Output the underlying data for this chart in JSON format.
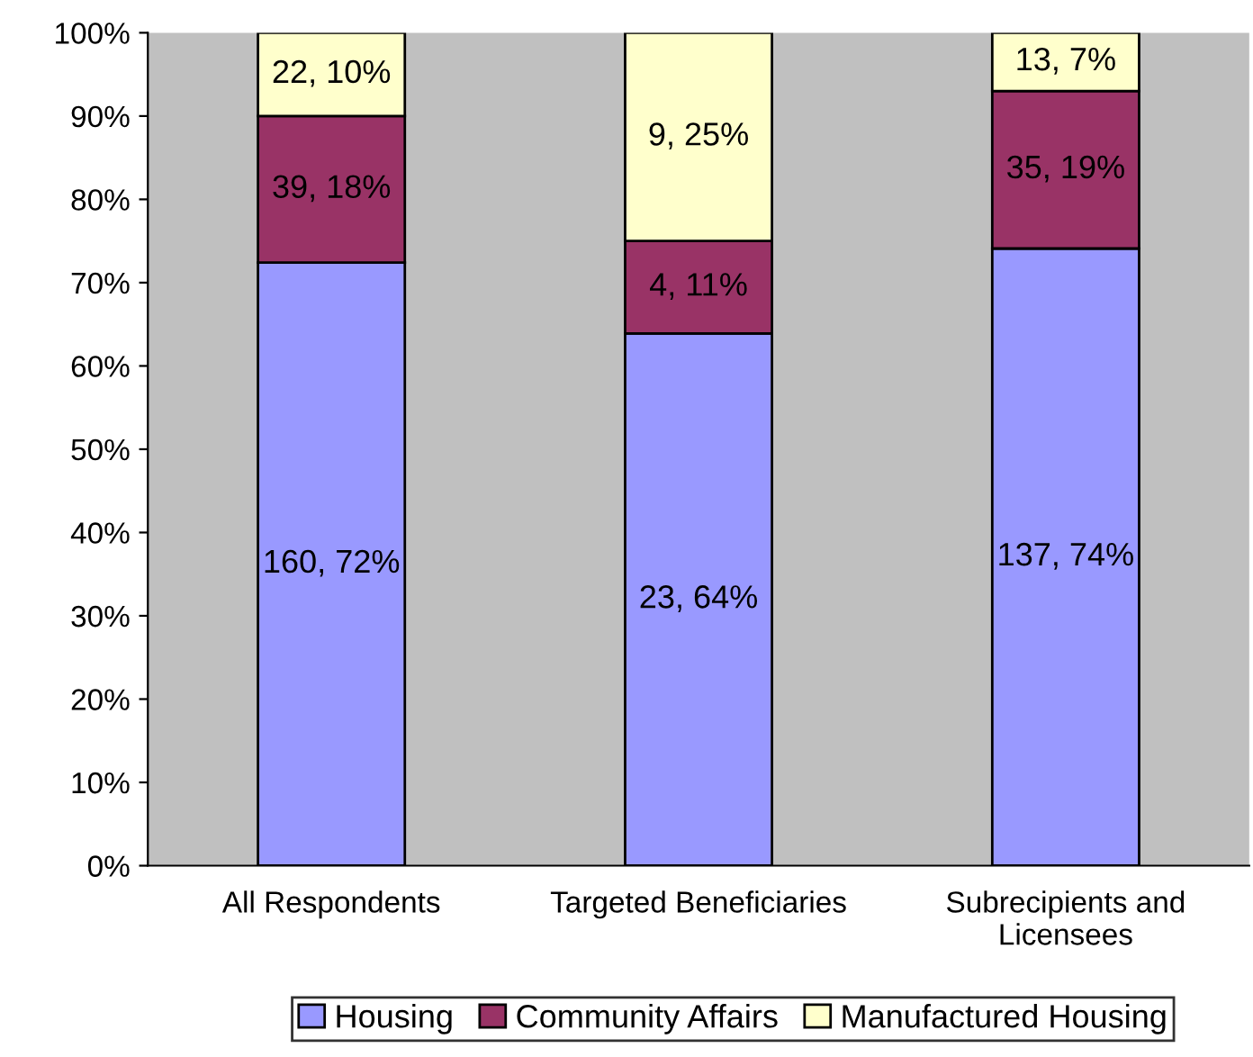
{
  "chart_data": {
    "type": "bar",
    "stacked": true,
    "categories": [
      "All Respondents",
      "Targeted Beneficiaries",
      "Subrecipients and\nLicensees"
    ],
    "series": [
      {
        "name": "Housing",
        "color": "#9999ff",
        "values": [
          72.4,
          63.9,
          74.1
        ],
        "value_labels": [
          "160, 72%",
          "23, 64%",
          "137, 74%"
        ]
      },
      {
        "name": "Community Affairs",
        "color": "#993366",
        "values": [
          17.6,
          11.1,
          18.9
        ],
        "value_labels": [
          "39, 18%",
          "4, 11%",
          "35, 19%"
        ]
      },
      {
        "name": "Manufactured Housing",
        "color": "#ffffcc",
        "values": [
          10.0,
          25.0,
          7.0
        ],
        "value_labels": [
          "22, 10%",
          "9, 25%",
          "13, 7%"
        ]
      }
    ],
    "ylim": [
      0,
      100
    ],
    "yticks": [
      {
        "value": 0,
        "label": "0%"
      },
      {
        "value": 10,
        "label": "10%"
      },
      {
        "value": 20,
        "label": "20%"
      },
      {
        "value": 30,
        "label": "30%"
      },
      {
        "value": 40,
        "label": "40%"
      },
      {
        "value": 50,
        "label": "50%"
      },
      {
        "value": 60,
        "label": "60%"
      },
      {
        "value": 70,
        "label": "70%"
      },
      {
        "value": 80,
        "label": "80%"
      },
      {
        "value": 90,
        "label": "90%"
      },
      {
        "value": 100,
        "label": "100%"
      }
    ],
    "grid": false,
    "legend": "bottom"
  }
}
